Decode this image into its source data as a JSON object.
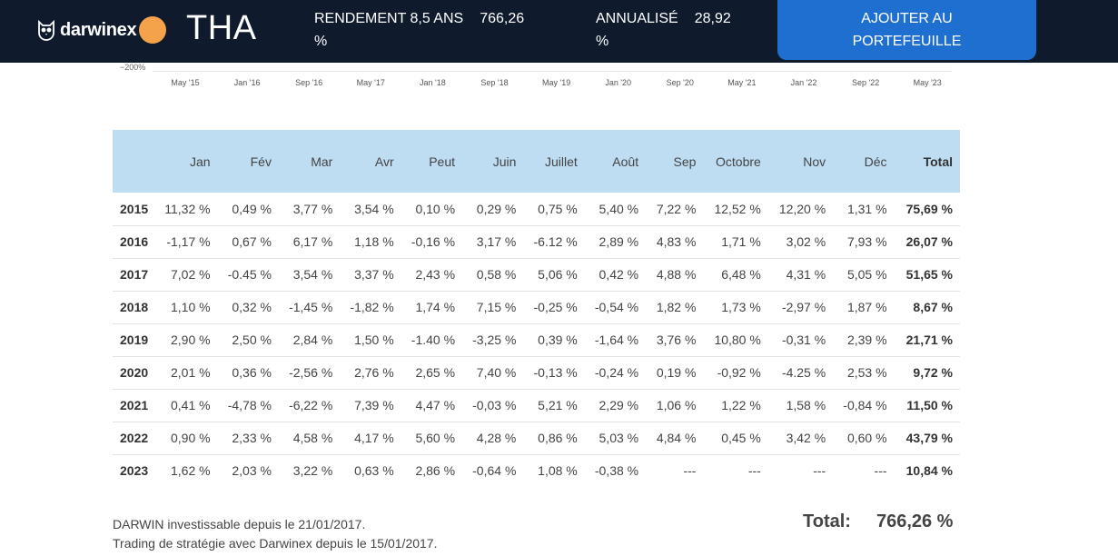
{
  "header": {
    "logo_text": "darwinex",
    "ticker": "THA",
    "return_label": "RENDEMENT 8,5 ANS",
    "return_value": "766,26",
    "return_unit": "%",
    "annualized_label": "ANNUALISÉ",
    "annualized_value": "28,92",
    "annualized_unit": "%",
    "cta_label": "AJOUTER AU PORTEFEUILLE",
    "colors": {
      "bar": "#0f1b2d",
      "accent": "#f5a34a",
      "button": "#1f6fd1"
    }
  },
  "chart_axis": {
    "y_label": "−200%",
    "x_ticks": [
      "May '15",
      "Jan '16",
      "Sep '16",
      "May '17",
      "Jan '18",
      "Sep '18",
      "May '19",
      "Jan '20",
      "Sep '20",
      "May '21",
      "Jan '22",
      "Sep '22",
      "May '23"
    ]
  },
  "table": {
    "headers": [
      "",
      "Jan",
      "Fév",
      "Mar",
      "Avr",
      "Peut",
      "Juin",
      "Juillet",
      "Août",
      "Sep",
      "Octobre",
      "Nov",
      "Déc",
      "Total"
    ],
    "rows": [
      [
        "2015",
        "11,32 %",
        "0,49 %",
        "3,77 %",
        "3,54 %",
        "0,10 %",
        "0,29 %",
        "0,75 %",
        "5,40 %",
        "7,22 %",
        "12,52 %",
        "12,20 %",
        "1,31 %",
        "75,69 %"
      ],
      [
        "2016",
        "-1,17 %",
        "0,67 %",
        "6,17 %",
        "1,18 %",
        "-0,16 %",
        "3,17 %",
        "-6.12 %",
        "2,89 %",
        "4,83 %",
        "1,71 %",
        "3,02 %",
        "7,93 %",
        "26,07 %"
      ],
      [
        "2017",
        "7,02 %",
        "-0.45 %",
        "3,54 %",
        "3,37 %",
        "2,43 %",
        "0,58 %",
        "5,06 %",
        "0,42 %",
        "4,88 %",
        "6,48 %",
        "4,31 %",
        "5,05 %",
        "51,65 %"
      ],
      [
        "2018",
        "1,10 %",
        "0,32 %",
        "-1,45 %",
        "-1,82 %",
        "1,74 %",
        "7,15 %",
        "-0,25 %",
        "-0,54 %",
        "1,82 %",
        "1,73 %",
        "-2,97 %",
        "1,87 %",
        "8,67 %"
      ],
      [
        "2019",
        "2,90 %",
        "2,50 %",
        "2,84 %",
        "1,50 %",
        "-1.40 %",
        "-3,25 %",
        "0,39 %",
        "-1,64 %",
        "3,76 %",
        "10,80 %",
        "-0,31 %",
        "2,39 %",
        "21,71 %"
      ],
      [
        "2020",
        "2,01 %",
        "0,36 %",
        "-2,56 %",
        "2,76 %",
        "2,65 %",
        "7,40 %",
        "-0,13 %",
        "-0,24 %",
        "0,19 %",
        "-0,92 %",
        "-4.25 %",
        "2,53 %",
        "9,72 %"
      ],
      [
        "2021",
        "0,41 %",
        "-4,78 %",
        "-6,22 %",
        "7,39 %",
        "4,47 %",
        "-0,03 %",
        "5,21 %",
        "2,29 %",
        "1,06 %",
        "1,22 %",
        "1,58 %",
        "-0,84 %",
        "11,50 %"
      ],
      [
        "2022",
        "0,90 %",
        "2,33 %",
        "4,58 %",
        "4,17 %",
        "5,60 %",
        "4,28 %",
        "0,86 %",
        "5,03 %",
        "4,84 %",
        "0,45 %",
        "3,42 %",
        "0,60 %",
        "43,79 %"
      ],
      [
        "2023",
        "1,62 %",
        "2,03 %",
        "3,22 %",
        "0,63 %",
        "2,86 %",
        "-0,64 %",
        "1,08 %",
        "-0,38 %",
        "---",
        "---",
        "---",
        "---",
        "10,84 %"
      ]
    ],
    "header_bg": "#bedcf2"
  },
  "footer": {
    "note1": "DARWIN investissable depuis le 21/01/2017.",
    "note2": "Trading de stratégie avec Darwinex depuis le 15/01/2017.",
    "total_label": "Total:",
    "total_value": "766,26 %"
  }
}
